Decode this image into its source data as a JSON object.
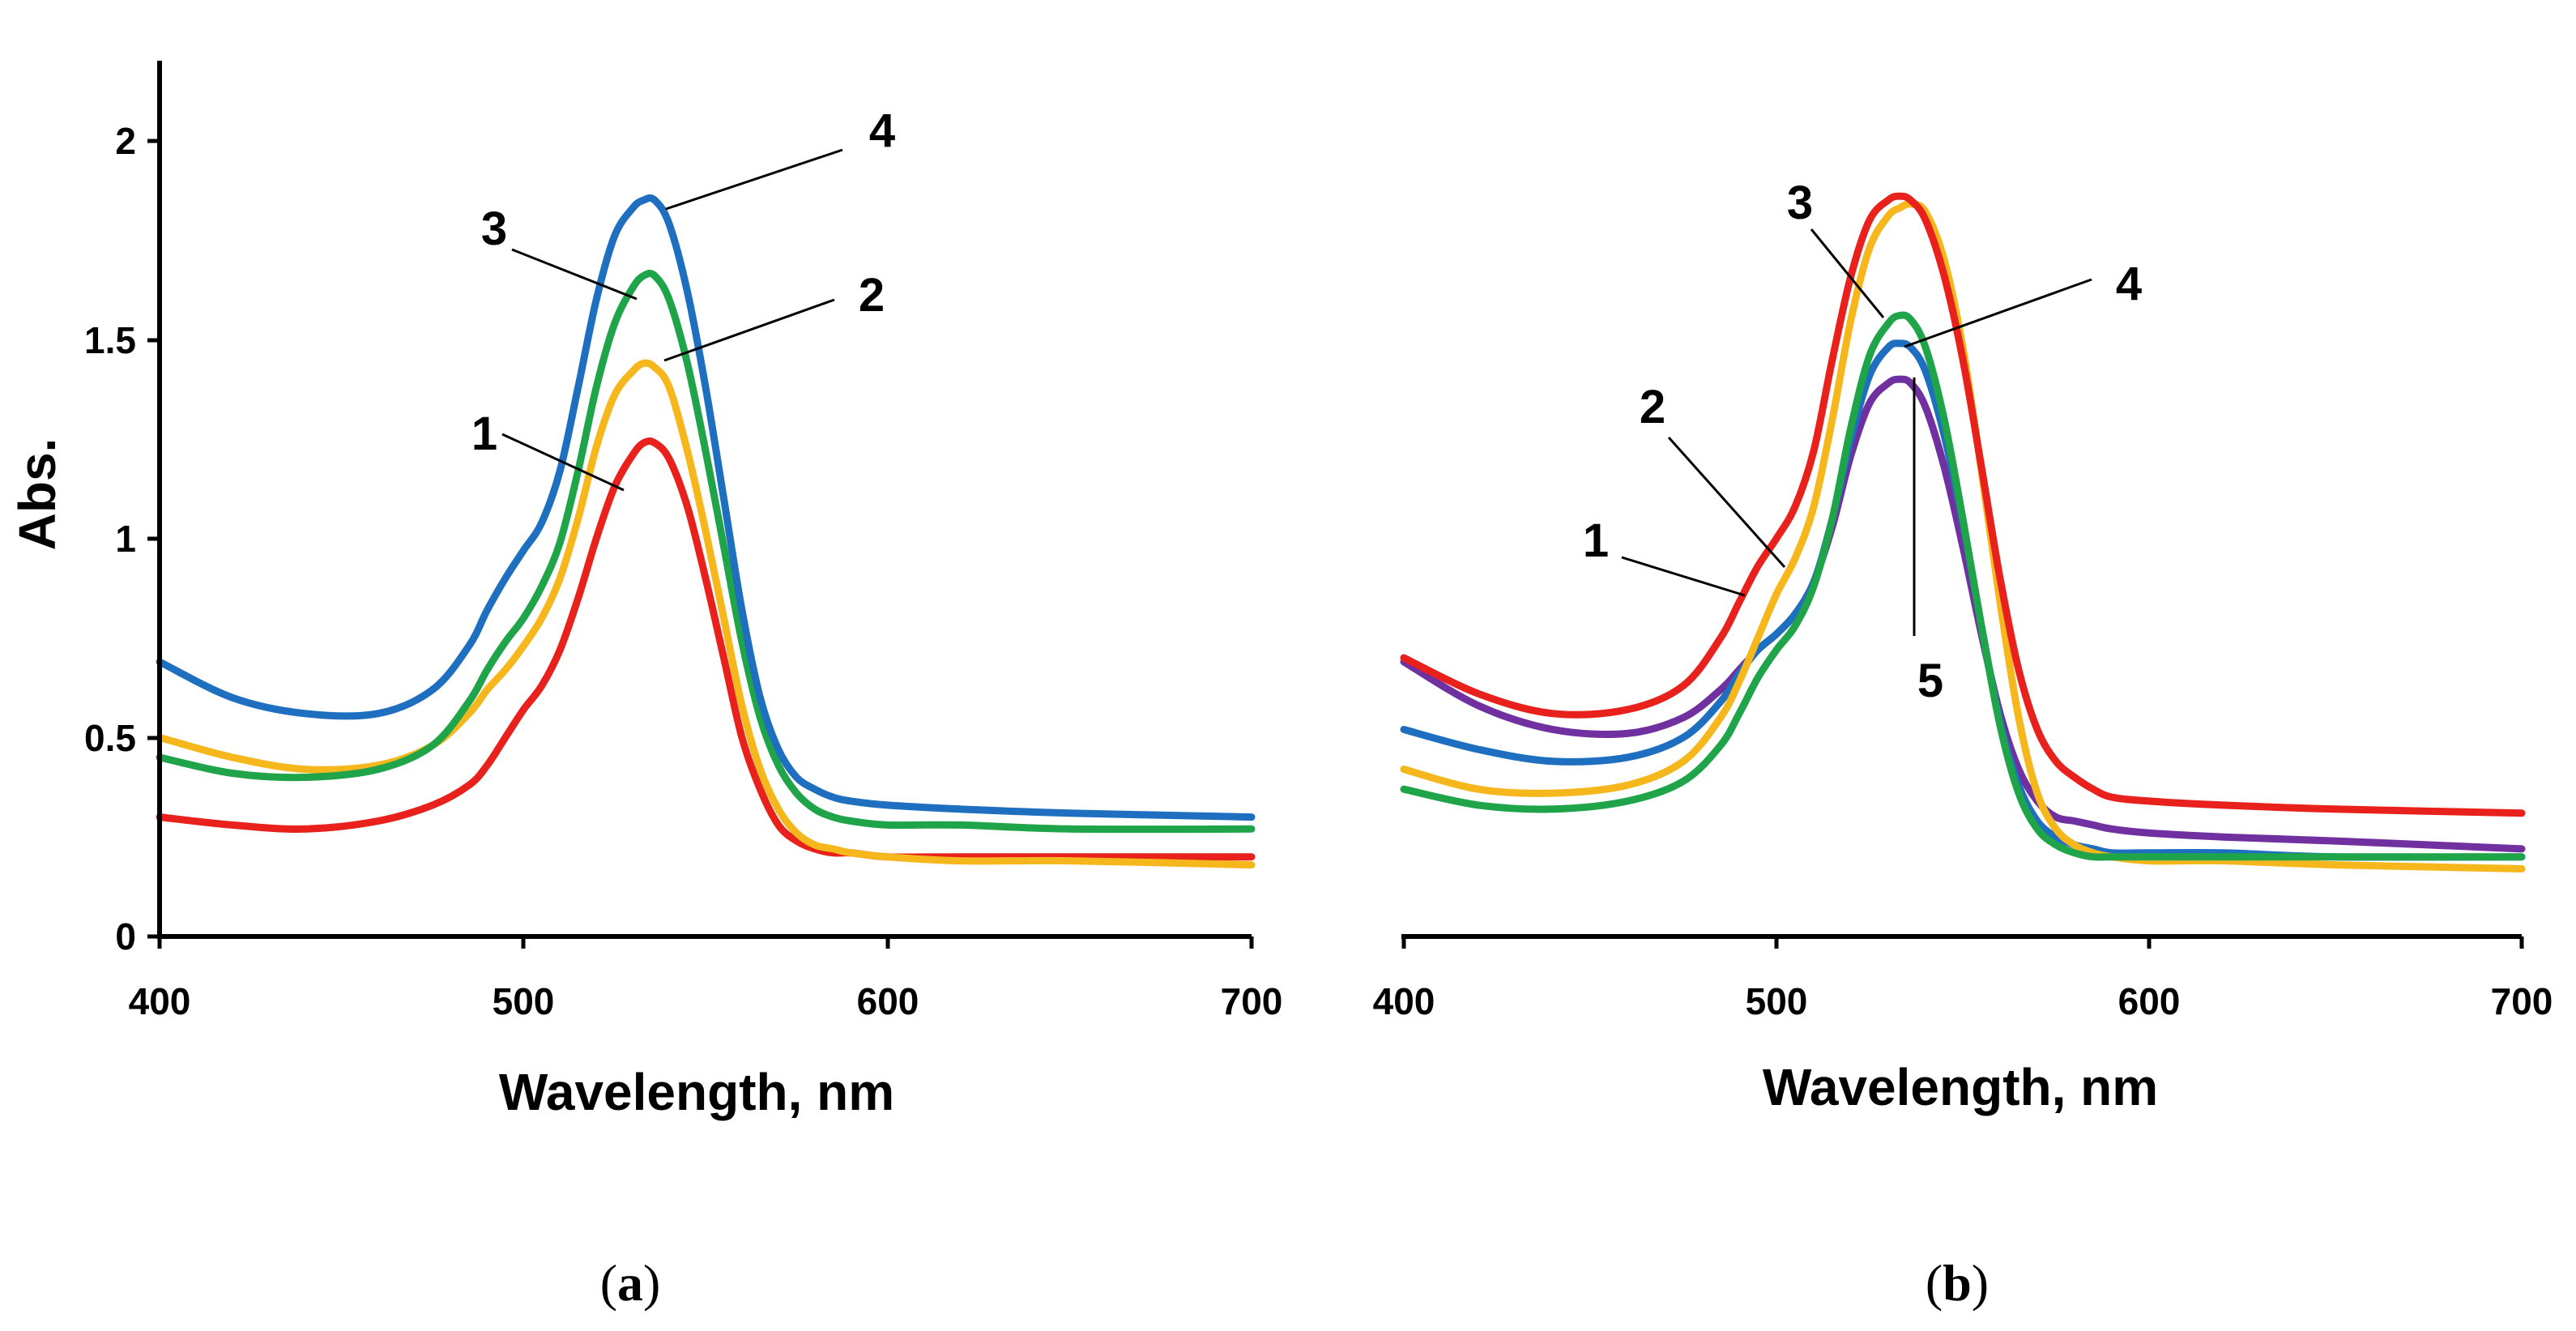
{
  "chart_data": [
    {
      "type": "line",
      "panel": "a",
      "caption": "(a)",
      "caption_open": "(",
      "caption_letter": "a",
      "caption_close": ")",
      "xlabel": "Wavelength, nm",
      "ylabel": "Abs.",
      "xlim": [
        400,
        700
      ],
      "ylim": [
        0,
        2.2
      ],
      "xticks": [
        400,
        500,
        600,
        700
      ],
      "xtick_labels": [
        "400",
        "500",
        "600",
        "700"
      ],
      "yticks": [
        0,
        0.5,
        1,
        1.5,
        2
      ],
      "ytick_labels": [
        "0",
        "0.5",
        "1",
        "1.5",
        "2"
      ],
      "series": [
        {
          "name": "1",
          "color": "#e8211d",
          "x": [
            400,
            420,
            440,
            460,
            475,
            485,
            490,
            495,
            500,
            505,
            510,
            515,
            520,
            525,
            530,
            533,
            536,
            540,
            545,
            550,
            555,
            560,
            565,
            570,
            575,
            580,
            585,
            590,
            600,
            620,
            650,
            700
          ],
          "y": [
            0.3,
            0.28,
            0.27,
            0.29,
            0.33,
            0.38,
            0.43,
            0.5,
            0.57,
            0.63,
            0.72,
            0.85,
            1.0,
            1.13,
            1.21,
            1.24,
            1.24,
            1.2,
            1.08,
            0.9,
            0.7,
            0.5,
            0.37,
            0.28,
            0.24,
            0.22,
            0.21,
            0.21,
            0.2,
            0.2,
            0.2,
            0.2
          ]
        },
        {
          "name": "2",
          "color": "#f5b71c",
          "x": [
            400,
            420,
            440,
            460,
            475,
            485,
            490,
            495,
            500,
            505,
            510,
            515,
            520,
            525,
            530,
            533,
            536,
            540,
            545,
            550,
            555,
            560,
            565,
            570,
            575,
            580,
            585,
            590,
            600,
            620,
            650,
            700
          ],
          "y": [
            0.5,
            0.45,
            0.42,
            0.43,
            0.48,
            0.56,
            0.62,
            0.67,
            0.73,
            0.8,
            0.9,
            1.05,
            1.23,
            1.36,
            1.42,
            1.44,
            1.43,
            1.38,
            1.22,
            1.02,
            0.8,
            0.58,
            0.42,
            0.32,
            0.26,
            0.23,
            0.22,
            0.21,
            0.2,
            0.19,
            0.19,
            0.18
          ]
        },
        {
          "name": "3",
          "color": "#1fa44a",
          "x": [
            400,
            420,
            440,
            460,
            475,
            485,
            490,
            495,
            500,
            505,
            510,
            515,
            520,
            525,
            530,
            533,
            536,
            540,
            545,
            550,
            555,
            560,
            565,
            570,
            575,
            580,
            585,
            590,
            600,
            620,
            650,
            700
          ],
          "y": [
            0.45,
            0.41,
            0.4,
            0.42,
            0.48,
            0.59,
            0.67,
            0.74,
            0.8,
            0.88,
            0.99,
            1.17,
            1.38,
            1.54,
            1.63,
            1.66,
            1.66,
            1.6,
            1.44,
            1.22,
            0.98,
            0.74,
            0.55,
            0.43,
            0.36,
            0.32,
            0.3,
            0.29,
            0.28,
            0.28,
            0.27,
            0.27
          ]
        },
        {
          "name": "4",
          "color": "#1e6fbf",
          "x": [
            400,
            420,
            440,
            460,
            475,
            485,
            490,
            495,
            500,
            505,
            510,
            515,
            520,
            525,
            530,
            533,
            536,
            540,
            545,
            550,
            555,
            560,
            565,
            570,
            575,
            580,
            585,
            590,
            600,
            620,
            650,
            700
          ],
          "y": [
            0.69,
            0.6,
            0.56,
            0.56,
            0.62,
            0.73,
            0.82,
            0.9,
            0.97,
            1.04,
            1.17,
            1.38,
            1.6,
            1.76,
            1.83,
            1.85,
            1.85,
            1.79,
            1.62,
            1.38,
            1.1,
            0.82,
            0.6,
            0.47,
            0.4,
            0.37,
            0.35,
            0.34,
            0.33,
            0.32,
            0.31,
            0.3
          ]
        }
      ],
      "annotations": [
        {
          "text": "1",
          "x": 538,
          "y": 1.19
        },
        {
          "text": "2",
          "x": 540,
          "y": 1.45
        },
        {
          "text": "3",
          "x": 529,
          "y": 1.62
        },
        {
          "text": "4",
          "x": 540,
          "y": 1.85
        }
      ]
    },
    {
      "type": "line",
      "panel": "b",
      "caption": "(b)",
      "caption_open": "(",
      "caption_letter": "b",
      "caption_close": ")",
      "xlabel": "Wavelength, nm",
      "ylabel": "",
      "xlim": [
        400,
        700
      ],
      "ylim": [
        0,
        2.2
      ],
      "xticks": [
        400,
        500,
        600,
        700
      ],
      "xtick_labels": [
        "400",
        "500",
        "600",
        "700"
      ],
      "yticks": [],
      "ytick_labels": [],
      "series": [
        {
          "name": "1",
          "color": "#e8211d",
          "x": [
            400,
            420,
            440,
            460,
            475,
            485,
            490,
            495,
            500,
            505,
            510,
            515,
            520,
            525,
            530,
            533,
            536,
            540,
            545,
            550,
            555,
            560,
            565,
            570,
            575,
            580,
            585,
            590,
            600,
            620,
            650,
            700
          ],
          "y": [
            0.7,
            0.61,
            0.56,
            0.57,
            0.63,
            0.75,
            0.84,
            0.93,
            1.0,
            1.08,
            1.22,
            1.45,
            1.66,
            1.8,
            1.85,
            1.86,
            1.85,
            1.8,
            1.66,
            1.45,
            1.18,
            0.9,
            0.67,
            0.52,
            0.44,
            0.4,
            0.37,
            0.35,
            0.34,
            0.33,
            0.32,
            0.31
          ]
        },
        {
          "name": "2",
          "color": "#f5b71c",
          "x": [
            400,
            420,
            440,
            460,
            475,
            485,
            490,
            495,
            500,
            505,
            510,
            515,
            520,
            525,
            530,
            533,
            536,
            540,
            545,
            550,
            555,
            560,
            565,
            570,
            575,
            580,
            585,
            590,
            600,
            620,
            650,
            700
          ],
          "y": [
            0.42,
            0.37,
            0.36,
            0.38,
            0.44,
            0.55,
            0.64,
            0.75,
            0.86,
            0.95,
            1.08,
            1.3,
            1.55,
            1.73,
            1.81,
            1.83,
            1.84,
            1.82,
            1.7,
            1.48,
            1.17,
            0.84,
            0.55,
            0.36,
            0.27,
            0.23,
            0.21,
            0.2,
            0.19,
            0.19,
            0.18,
            0.17
          ]
        },
        {
          "name": "3",
          "color": "#1fa44a",
          "x": [
            400,
            420,
            440,
            460,
            475,
            485,
            490,
            495,
            500,
            505,
            510,
            515,
            520,
            525,
            530,
            533,
            536,
            540,
            545,
            550,
            555,
            560,
            565,
            570,
            575,
            580,
            585,
            590,
            600,
            620,
            650,
            700
          ],
          "y": [
            0.37,
            0.33,
            0.32,
            0.34,
            0.39,
            0.48,
            0.56,
            0.65,
            0.72,
            0.78,
            0.88,
            1.05,
            1.28,
            1.46,
            1.54,
            1.56,
            1.55,
            1.48,
            1.3,
            1.05,
            0.78,
            0.53,
            0.36,
            0.27,
            0.23,
            0.21,
            0.2,
            0.2,
            0.2,
            0.2,
            0.2,
            0.2
          ]
        },
        {
          "name": "4",
          "color": "#1e6fbf",
          "x": [
            400,
            420,
            440,
            460,
            475,
            485,
            490,
            495,
            500,
            505,
            510,
            515,
            520,
            525,
            530,
            533,
            536,
            540,
            545,
            550,
            555,
            560,
            565,
            570,
            575,
            580,
            585,
            590,
            600,
            620,
            650,
            700
          ],
          "y": [
            0.52,
            0.47,
            0.44,
            0.45,
            0.5,
            0.59,
            0.66,
            0.72,
            0.76,
            0.81,
            0.89,
            1.05,
            1.25,
            1.41,
            1.48,
            1.49,
            1.48,
            1.42,
            1.26,
            1.04,
            0.78,
            0.54,
            0.38,
            0.29,
            0.25,
            0.23,
            0.22,
            0.21,
            0.21,
            0.21,
            0.2,
            0.2
          ]
        },
        {
          "name": "5",
          "color": "#7030a0",
          "x": [
            400,
            420,
            440,
            460,
            475,
            485,
            490,
            495,
            500,
            505,
            510,
            515,
            520,
            525,
            530,
            533,
            536,
            540,
            545,
            550,
            555,
            560,
            565,
            570,
            575,
            580,
            585,
            590,
            600,
            620,
            650,
            700
          ],
          "y": [
            0.69,
            0.58,
            0.52,
            0.51,
            0.55,
            0.62,
            0.67,
            0.72,
            0.76,
            0.81,
            0.89,
            1.03,
            1.21,
            1.34,
            1.39,
            1.4,
            1.39,
            1.33,
            1.18,
            0.98,
            0.76,
            0.56,
            0.42,
            0.34,
            0.3,
            0.29,
            0.28,
            0.27,
            0.26,
            0.25,
            0.24,
            0.22
          ]
        }
      ],
      "annotations": [
        {
          "text": "1",
          "x": 493,
          "y": 0.87
        },
        {
          "text": "2",
          "x": 508,
          "y": 0.93
        },
        {
          "text": "3",
          "x": 533,
          "y": 1.55
        },
        {
          "text": "4",
          "x": 536,
          "y": 1.5
        },
        {
          "text": "5",
          "x": 537,
          "y": 1.39
        }
      ]
    }
  ]
}
